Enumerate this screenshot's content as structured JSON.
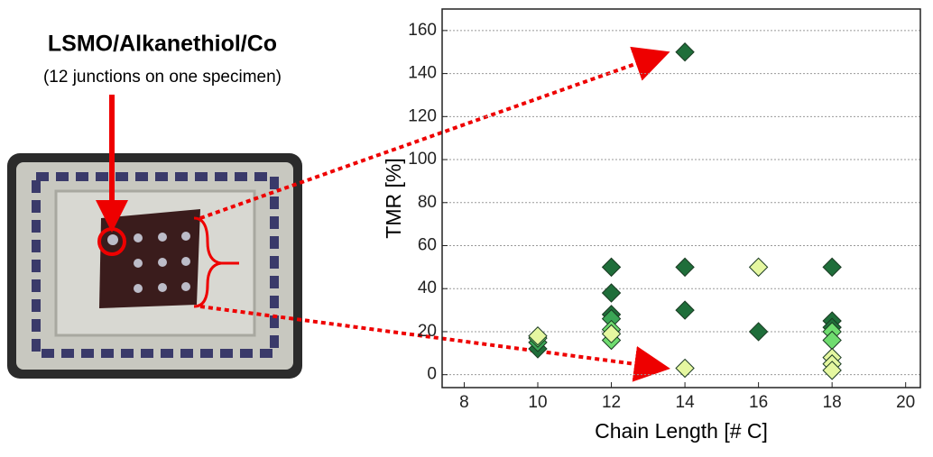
{
  "texts": {
    "specimen_title": "LSMO/Alkanethiol/Co",
    "specimen_note": "(12 junctions on one specimen)"
  },
  "chart_data": {
    "type": "scatter",
    "x_label": "Chain Length [# C]",
    "y_label": "TMR [%]",
    "xlim": [
      7.4,
      20.4
    ],
    "xticks": [
      8,
      10,
      12,
      14,
      16,
      18,
      20
    ],
    "ylim": [
      -6,
      170
    ],
    "yticks": [
      0,
      20,
      40,
      60,
      80,
      100,
      120,
      140,
      160
    ],
    "grid": true,
    "series": [
      {
        "color": "#1f6e3a",
        "x": [
          10,
          12,
          12,
          12,
          14,
          14,
          14,
          16,
          18,
          18,
          18
        ],
        "values": [
          12,
          50,
          38,
          28,
          150,
          50,
          30,
          20,
          50,
          25,
          22
        ]
      },
      {
        "color": "#3aa655",
        "x": [
          10,
          12
        ],
        "values": [
          15,
          26
        ]
      },
      {
        "color": "#6fdc6f",
        "x": [
          10,
          12,
          12,
          18,
          18
        ],
        "values": [
          17,
          21,
          16,
          20,
          16
        ]
      },
      {
        "color": "#e5f7a0",
        "x": [
          10,
          12,
          14,
          16,
          18,
          18,
          18
        ],
        "values": [
          18,
          19,
          3,
          50,
          8,
          5,
          2
        ]
      }
    ]
  }
}
